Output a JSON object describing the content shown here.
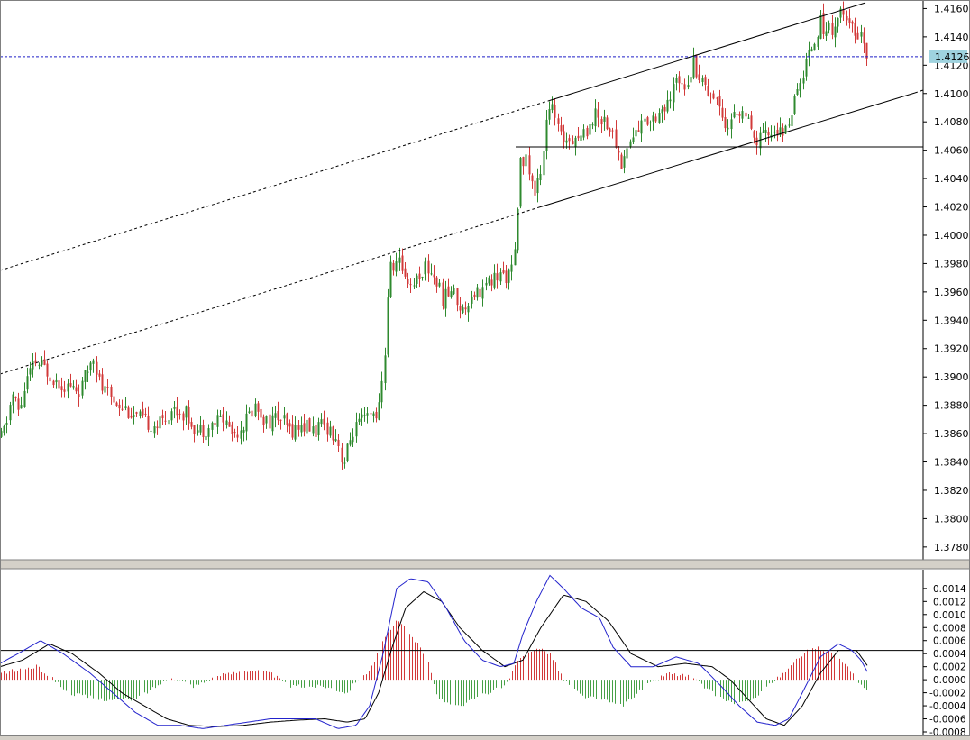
{
  "price_axis": {
    "ticks": [
      "1.4160",
      "1.4140",
      "1.4120",
      "1.4100",
      "1.4080",
      "1.4060",
      "1.4040",
      "1.4020",
      "1.4000",
      "1.3980",
      "1.3960",
      "1.3940",
      "1.3920",
      "1.3900",
      "1.3880",
      "1.3860",
      "1.3840",
      "1.3820",
      "1.3800",
      "1.3780"
    ],
    "current_price": "1.4126"
  },
  "macd_axis": {
    "ticks": [
      "0.0014",
      "0.0012",
      "0.0010",
      "0.0008",
      "0.0006",
      "0.0004",
      "0.0002",
      "0.0000",
      "-0.0002",
      "-0.0004",
      "-0.0006",
      "-0.0008"
    ]
  },
  "colors": {
    "bull": "#2f8a2f",
    "bear": "#d23a3a",
    "current_line": "#1e1ec8",
    "current_label_bg": "#9fd3df",
    "macd_line": "#2222cc",
    "signal_line": "#000000",
    "hist_pos": "#d23a3a",
    "hist_neg": "#46a046"
  },
  "chart_data": [
    {
      "type": "candlestick",
      "ylim": [
        1.3771,
        1.4166
      ],
      "close_path": [
        [
          0,
          1.3857
        ],
        [
          5,
          1.3865
        ],
        [
          12,
          1.3888
        ],
        [
          20,
          1.3875
        ],
        [
          28,
          1.3898
        ],
        [
          38,
          1.391
        ],
        [
          50,
          1.3905
        ],
        [
          62,
          1.3897
        ],
        [
          75,
          1.3893
        ],
        [
          88,
          1.389
        ],
        [
          96,
          1.3905
        ],
        [
          102,
          1.3918
        ],
        [
          110,
          1.3893
        ],
        [
          122,
          1.3885
        ],
        [
          135,
          1.388
        ],
        [
          148,
          1.3872
        ],
        [
          160,
          1.3868
        ],
        [
          175,
          1.3866
        ],
        [
          190,
          1.3878
        ],
        [
          205,
          1.3874
        ],
        [
          218,
          1.3862
        ],
        [
          232,
          1.3865
        ],
        [
          245,
          1.3872
        ],
        [
          258,
          1.386
        ],
        [
          270,
          1.3868
        ],
        [
          282,
          1.388
        ],
        [
          295,
          1.3868
        ],
        [
          308,
          1.3872
        ],
        [
          320,
          1.3862
        ],
        [
          335,
          1.3866
        ],
        [
          348,
          1.3862
        ],
        [
          360,
          1.3866
        ],
        [
          372,
          1.3858
        ],
        [
          380,
          1.3838
        ],
        [
          390,
          1.3862
        ],
        [
          400,
          1.3868
        ],
        [
          410,
          1.3872
        ],
        [
          420,
          1.3878
        ],
        [
          426,
          1.392
        ],
        [
          430,
          1.3975
        ],
        [
          440,
          1.3982
        ],
        [
          455,
          1.3965
        ],
        [
          470,
          1.3978
        ],
        [
          480,
          1.3972
        ],
        [
          490,
          1.3955
        ],
        [
          500,
          1.3962
        ],
        [
          512,
          1.3946
        ],
        [
          522,
          1.396
        ],
        [
          535,
          1.3962
        ],
        [
          548,
          1.397
        ],
        [
          560,
          1.3972
        ],
        [
          568,
          1.3975
        ],
        [
          573,
          1.4015
        ],
        [
          576,
          1.4058
        ],
        [
          584,
          1.405
        ],
        [
          592,
          1.4028
        ],
        [
          600,
          1.4052
        ],
        [
          606,
          1.4092
        ],
        [
          612,
          1.4088
        ],
        [
          620,
          1.4068
        ],
        [
          632,
          1.407
        ],
        [
          645,
          1.407
        ],
        [
          658,
          1.4085
        ],
        [
          670,
          1.4082
        ],
        [
          680,
          1.4068
        ],
        [
          688,
          1.405
        ],
        [
          696,
          1.4065
        ],
        [
          706,
          1.4075
        ],
        [
          718,
          1.4082
        ],
        [
          730,
          1.4088
        ],
        [
          740,
          1.409
        ],
        [
          750,
          1.4112
        ],
        [
          760,
          1.4108
        ],
        [
          768,
          1.4122
        ],
        [
          778,
          1.4108
        ],
        [
          788,
          1.41
        ],
        [
          798,
          1.4092
        ],
        [
          805,
          1.4075
        ],
        [
          815,
          1.4088
        ],
        [
          825,
          1.4085
        ],
        [
          835,
          1.4065
        ],
        [
          848,
          1.407
        ],
        [
          860,
          1.4075
        ],
        [
          868,
          1.4068
        ],
        [
          876,
          1.4088
        ],
        [
          884,
          1.41
        ],
        [
          892,
          1.4122
        ],
        [
          900,
          1.4135
        ],
        [
          908,
          1.415
        ],
        [
          916,
          1.4145
        ],
        [
          924,
          1.4148
        ],
        [
          932,
          1.4158
        ],
        [
          940,
          1.4145
        ],
        [
          948,
          1.4145
        ],
        [
          955,
          1.414
        ],
        [
          960,
          1.413
        ],
        [
          963,
          1.4126
        ]
      ]
    },
    {
      "type": "macd",
      "ylim": [
        -0.0008,
        0.00155
      ],
      "zero": 0.0,
      "level": 0.00045,
      "macd_path": [
        [
          0,
          0.00025
        ],
        [
          20,
          0.0004
        ],
        [
          45,
          0.0006
        ],
        [
          70,
          0.0004
        ],
        [
          100,
          0.0001
        ],
        [
          125,
          -0.0002
        ],
        [
          150,
          -0.0005
        ],
        [
          175,
          -0.0007
        ],
        [
          200,
          -0.0007
        ],
        [
          225,
          -0.00075
        ],
        [
          250,
          -0.0007
        ],
        [
          275,
          -0.00065
        ],
        [
          300,
          -0.0006
        ],
        [
          325,
          -0.0006
        ],
        [
          350,
          -0.0006
        ],
        [
          375,
          -0.00075
        ],
        [
          395,
          -0.0007
        ],
        [
          410,
          -0.0004
        ],
        [
          425,
          0.0004
        ],
        [
          440,
          0.0014
        ],
        [
          455,
          0.00155
        ],
        [
          475,
          0.0015
        ],
        [
          495,
          0.0011
        ],
        [
          515,
          0.0006
        ],
        [
          535,
          0.0003
        ],
        [
          555,
          0.0002
        ],
        [
          570,
          0.00025
        ],
        [
          580,
          0.0007
        ],
        [
          595,
          0.0012
        ],
        [
          610,
          0.0016
        ],
        [
          625,
          0.0014
        ],
        [
          645,
          0.0011
        ],
        [
          665,
          0.00095
        ],
        [
          680,
          0.0005
        ],
        [
          700,
          0.0002
        ],
        [
          725,
          0.0002
        ],
        [
          750,
          0.00035
        ],
        [
          775,
          0.00025
        ],
        [
          800,
          -0.0001
        ],
        [
          820,
          -0.0004
        ],
        [
          840,
          -0.00065
        ],
        [
          860,
          -0.0007
        ],
        [
          875,
          -0.0006
        ],
        [
          890,
          -0.0002
        ],
        [
          910,
          0.00035
        ],
        [
          930,
          0.00055
        ],
        [
          945,
          0.00045
        ],
        [
          955,
          0.0003
        ],
        [
          963,
          0.0001
        ]
      ],
      "signal_path": [
        [
          0,
          0.0002
        ],
        [
          25,
          0.0003
        ],
        [
          55,
          0.00055
        ],
        [
          80,
          0.0004
        ],
        [
          110,
          0.0001
        ],
        [
          135,
          -0.0002
        ],
        [
          160,
          -0.0004
        ],
        [
          185,
          -0.0006
        ],
        [
          210,
          -0.0007
        ],
        [
          240,
          -0.00072
        ],
        [
          270,
          -0.0007
        ],
        [
          300,
          -0.00065
        ],
        [
          330,
          -0.00062
        ],
        [
          360,
          -0.0006
        ],
        [
          385,
          -0.00065
        ],
        [
          405,
          -0.0006
        ],
        [
          420,
          -0.0002
        ],
        [
          435,
          0.0005
        ],
        [
          450,
          0.0011
        ],
        [
          470,
          0.00135
        ],
        [
          490,
          0.0012
        ],
        [
          510,
          0.0008
        ],
        [
          535,
          0.00045
        ],
        [
          560,
          0.0002
        ],
        [
          580,
          0.0003
        ],
        [
          600,
          0.0008
        ],
        [
          625,
          0.0013
        ],
        [
          650,
          0.0012
        ],
        [
          675,
          0.0009
        ],
        [
          700,
          0.0004
        ],
        [
          730,
          0.0002
        ],
        [
          760,
          0.00025
        ],
        [
          790,
          0.0002
        ],
        [
          810,
          0.0
        ],
        [
          830,
          -0.0003
        ],
        [
          850,
          -0.0006
        ],
        [
          870,
          -0.0007
        ],
        [
          890,
          -0.0004
        ],
        [
          910,
          0.0001
        ],
        [
          930,
          0.00045
        ],
        [
          950,
          0.00045
        ],
        [
          963,
          0.0002
        ]
      ],
      "histogram_path": [
        [
          0,
          0.0001
        ],
        [
          40,
          0.0002
        ],
        [
          60,
          0.0
        ],
        [
          75,
          -0.0002
        ],
        [
          110,
          -0.0003
        ],
        [
          150,
          -0.0003
        ],
        [
          190,
          5e-05
        ],
        [
          215,
          -0.0001
        ],
        [
          240,
          5e-05
        ],
        [
          275,
          0.00015
        ],
        [
          300,
          0.0001
        ],
        [
          320,
          -0.0001
        ],
        [
          360,
          -0.0001
        ],
        [
          385,
          -0.0002
        ],
        [
          395,
          0.0
        ],
        [
          410,
          0.00015
        ],
        [
          425,
          0.0006
        ],
        [
          440,
          0.0009
        ],
        [
          450,
          0.0008
        ],
        [
          475,
          0.0003
        ],
        [
          485,
          -0.0003
        ],
        [
          510,
          -0.0004
        ],
        [
          540,
          -0.0002
        ],
        [
          560,
          -0.0001
        ],
        [
          575,
          0.0003
        ],
        [
          595,
          0.0005
        ],
        [
          610,
          0.0004
        ],
        [
          625,
          0.0
        ],
        [
          645,
          -0.00025
        ],
        [
          665,
          -0.0003
        ],
        [
          690,
          -0.0004
        ],
        [
          715,
          -0.0001
        ],
        [
          740,
          0.0001
        ],
        [
          765,
          5e-05
        ],
        [
          790,
          -0.0002
        ],
        [
          810,
          -0.00035
        ],
        [
          830,
          -0.00035
        ],
        [
          850,
          -0.0001
        ],
        [
          870,
          0.0001
        ],
        [
          890,
          0.0004
        ],
        [
          905,
          0.0005
        ],
        [
          925,
          0.0004
        ],
        [
          945,
          0.0001
        ],
        [
          955,
          -0.0001
        ],
        [
          963,
          -0.0002
        ]
      ]
    }
  ]
}
